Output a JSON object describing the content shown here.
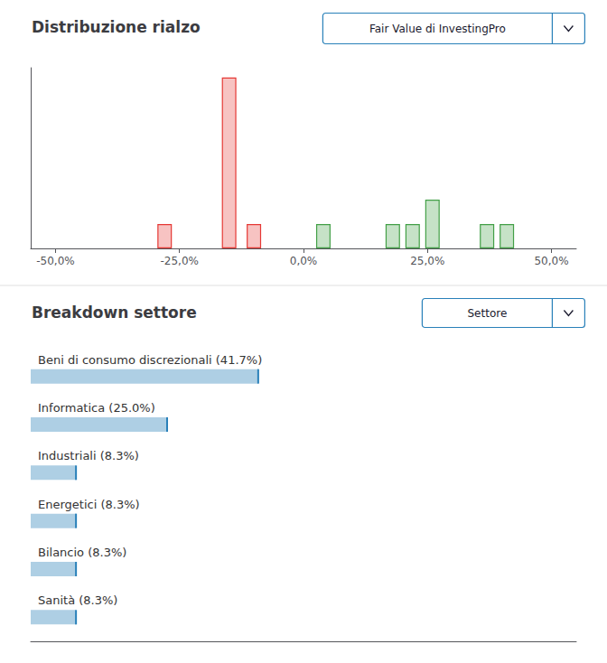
{
  "chart_data": [
    {
      "type": "bar",
      "title": "Distribuzione rialzo",
      "annotations": [
        "Fair Value di InvestingPro"
      ],
      "x": [
        -28,
        -15,
        -10,
        4,
        18,
        22,
        26,
        37,
        41
      ],
      "values": [
        1,
        7,
        1,
        1,
        1,
        1,
        2,
        1,
        1
      ],
      "colors": [
        "#e53935",
        "#e53935",
        "#e53935",
        "#43a047",
        "#43a047",
        "#43a047",
        "#43a047",
        "#43a047",
        "#43a047"
      ],
      "xlim": [
        -55,
        55
      ],
      "xticks": [
        {
          "value": -50,
          "label": "-50,0%"
        },
        {
          "value": -25,
          "label": "-25,0%"
        },
        {
          "value": 0,
          "label": "0,0%"
        },
        {
          "value": 25,
          "label": "25,0%"
        },
        {
          "value": 50,
          "label": "50,0%"
        }
      ],
      "ylim": [
        0,
        7.4
      ],
      "grid": false,
      "tick_labels": "x"
    },
    {
      "type": "bar",
      "orientation": "horizontal",
      "title": "Breakdown settore",
      "annotations": [
        "Settore"
      ],
      "categories": [
        "Beni di consumo discrezionali (41.7%)",
        "Informatica (25.0%)",
        "Industriali (8.3%)",
        "Energetici (8.3%)",
        "Bilancio (8.3%)",
        "Sanità (8.3%)"
      ],
      "values": [
        41.7,
        25.0,
        8.3,
        8.3,
        8.3,
        8.3
      ],
      "color": "#2980b9",
      "xlim": [
        0,
        100
      ],
      "grid": false,
      "tick_labels": "y"
    }
  ]
}
